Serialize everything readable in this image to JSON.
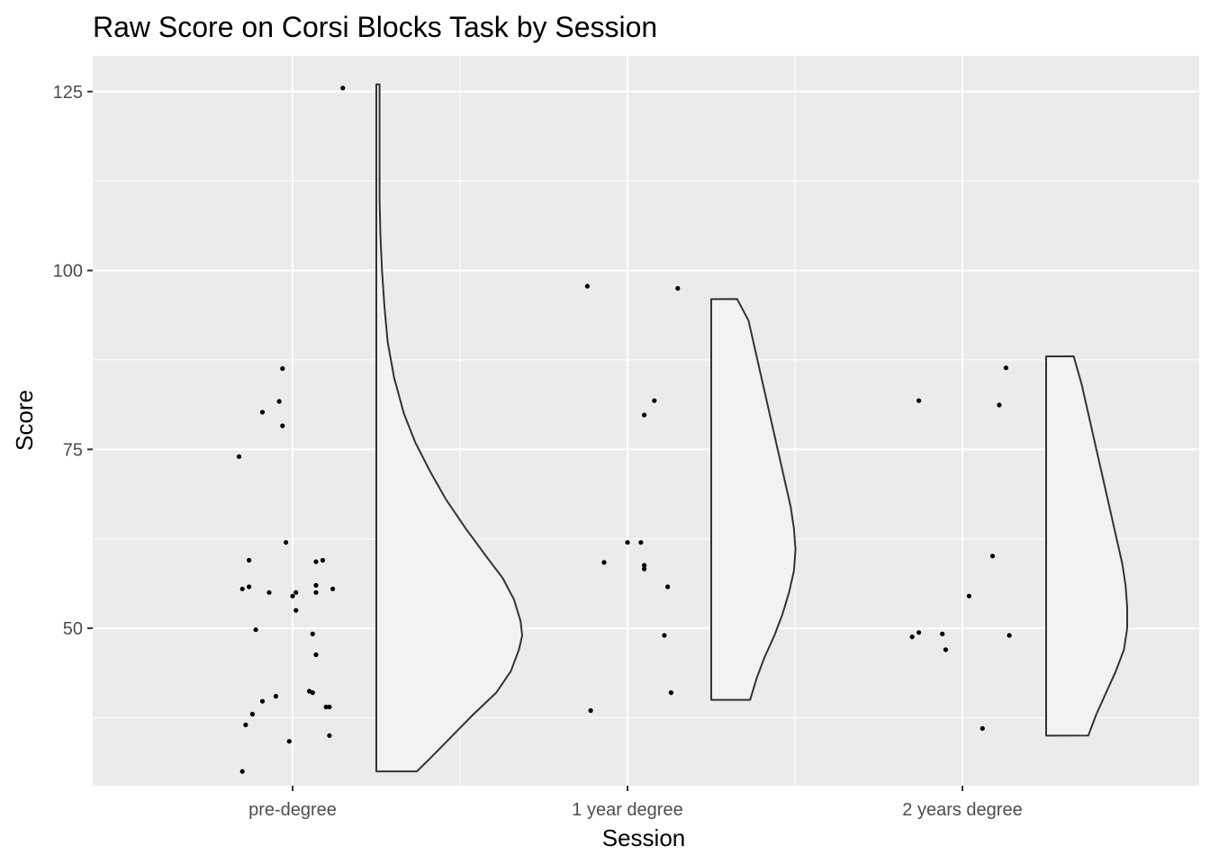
{
  "chart_data": {
    "type": "scatter",
    "title": "Raw Score on Corsi Blocks Task by Session",
    "xlabel": "Session",
    "ylabel": "Score",
    "ylim": [
      28,
      130
    ],
    "yticks": [
      50,
      75,
      100,
      125
    ],
    "grid": true,
    "legend": "none",
    "categories": [
      "pre-degree",
      "1 year degree",
      "2 years degree"
    ],
    "series": [
      {
        "category": "pre-degree",
        "points": [
          [
            -0.15,
            30.0
          ],
          [
            -0.14,
            36.5
          ],
          [
            -0.12,
            38.0
          ],
          [
            -0.09,
            39.8
          ],
          [
            -0.05,
            40.5
          ],
          [
            -0.01,
            34.2
          ],
          [
            0.05,
            41.2
          ],
          [
            0.06,
            41.0
          ],
          [
            0.1,
            39.0
          ],
          [
            0.11,
            35.0
          ],
          [
            0.11,
            39.0
          ],
          [
            0.07,
            46.3
          ],
          [
            0.06,
            49.2
          ],
          [
            -0.11,
            49.8
          ],
          [
            0.01,
            52.5
          ],
          [
            -0.15,
            55.5
          ],
          [
            -0.13,
            55.8
          ],
          [
            -0.07,
            55.0
          ],
          [
            0.0,
            54.5
          ],
          [
            0.01,
            55.0
          ],
          [
            0.07,
            55.0
          ],
          [
            0.07,
            56.0
          ],
          [
            0.12,
            55.5
          ],
          [
            -0.13,
            59.5
          ],
          [
            0.07,
            59.3
          ],
          [
            0.09,
            59.5
          ],
          [
            -0.02,
            62.0
          ],
          [
            -0.16,
            74.0
          ],
          [
            -0.09,
            80.2
          ],
          [
            -0.03,
            78.3
          ],
          [
            -0.04,
            81.7
          ],
          [
            -0.03,
            86.3
          ],
          [
            0.15,
            125.5
          ]
        ],
        "density": {
          "range": [
            30,
            126
          ],
          "profile": [
            [
              30,
              0.25
            ],
            [
              32,
              0.34
            ],
            [
              35,
              0.47
            ],
            [
              38,
              0.6
            ],
            [
              41,
              0.74
            ],
            [
              44,
              0.83
            ],
            [
              47,
              0.88
            ],
            [
              49,
              0.9
            ],
            [
              51,
              0.89
            ],
            [
              54,
              0.85
            ],
            [
              57,
              0.78
            ],
            [
              60,
              0.68
            ],
            [
              64,
              0.55
            ],
            [
              68,
              0.43
            ],
            [
              72,
              0.33
            ],
            [
              76,
              0.24
            ],
            [
              80,
              0.17
            ],
            [
              85,
              0.11
            ],
            [
              90,
              0.07
            ],
            [
              95,
              0.05
            ],
            [
              100,
              0.035
            ],
            [
              105,
              0.025
            ],
            [
              110,
              0.02
            ],
            [
              115,
              0.02
            ],
            [
              120,
              0.02
            ],
            [
              126,
              0.02
            ]
          ]
        }
      },
      {
        "category": "1 year degree",
        "points": [
          [
            -0.11,
            38.5
          ],
          [
            0.13,
            41.0
          ],
          [
            0.11,
            49.0
          ],
          [
            0.12,
            55.8
          ],
          [
            0.05,
            58.3
          ],
          [
            0.05,
            58.8
          ],
          [
            -0.07,
            59.2
          ],
          [
            0.0,
            62.0
          ],
          [
            0.04,
            62.0
          ],
          [
            0.05,
            79.8
          ],
          [
            0.08,
            81.8
          ],
          [
            -0.12,
            97.8
          ],
          [
            0.15,
            97.5
          ]
        ],
        "density": {
          "range": [
            40,
            96
          ],
          "profile": [
            [
              40,
              0.24
            ],
            [
              43,
              0.28
            ],
            [
              46,
              0.33
            ],
            [
              49,
              0.39
            ],
            [
              52,
              0.44
            ],
            [
              55,
              0.48
            ],
            [
              58,
              0.51
            ],
            [
              61,
              0.52
            ],
            [
              64,
              0.51
            ],
            [
              67,
              0.49
            ],
            [
              70,
              0.46
            ],
            [
              74,
              0.42
            ],
            [
              78,
              0.38
            ],
            [
              82,
              0.34
            ],
            [
              86,
              0.3
            ],
            [
              90,
              0.26
            ],
            [
              93,
              0.23
            ],
            [
              96,
              0.16
            ]
          ]
        }
      },
      {
        "category": "2 years degree",
        "points": [
          [
            -0.15,
            48.8
          ],
          [
            -0.13,
            49.4
          ],
          [
            -0.06,
            49.2
          ],
          [
            -0.05,
            47.0
          ],
          [
            0.02,
            54.5
          ],
          [
            0.06,
            36.0
          ],
          [
            0.09,
            60.1
          ],
          [
            0.14,
            49.0
          ],
          [
            0.11,
            81.2
          ],
          [
            0.13,
            86.4
          ],
          [
            -0.13,
            81.8
          ]
        ],
        "density": {
          "range": [
            35,
            88
          ],
          "profile": [
            [
              35,
              0.26
            ],
            [
              38,
              0.31
            ],
            [
              41,
              0.37
            ],
            [
              44,
              0.43
            ],
            [
              47,
              0.48
            ],
            [
              50,
              0.5
            ],
            [
              53,
              0.5
            ],
            [
              56,
              0.49
            ],
            [
              59,
              0.47
            ],
            [
              62,
              0.44
            ],
            [
              65,
              0.41
            ],
            [
              68,
              0.38
            ],
            [
              72,
              0.34
            ],
            [
              76,
              0.3
            ],
            [
              80,
              0.26
            ],
            [
              84,
              0.22
            ],
            [
              88,
              0.17
            ]
          ]
        }
      }
    ]
  }
}
